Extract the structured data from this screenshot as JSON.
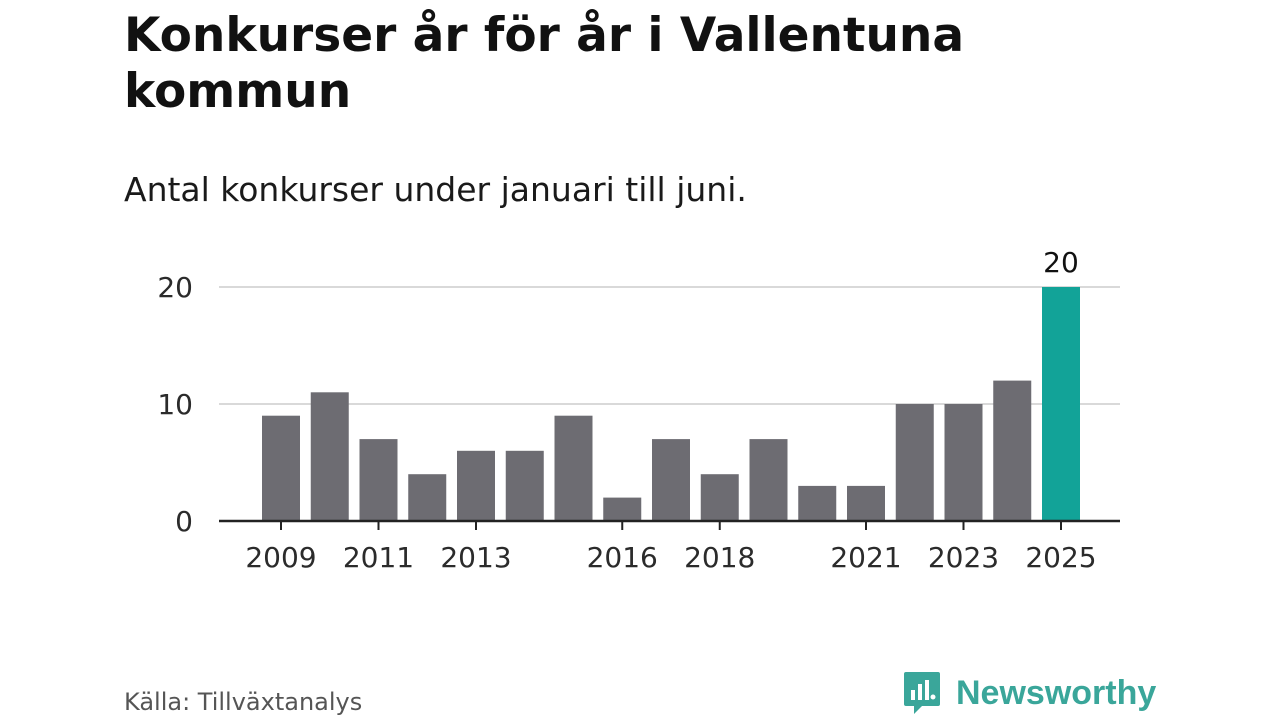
{
  "title": "Konkurser år för år i Vallentuna kommun",
  "subtitle": "Antal konkurser under januari till juni.",
  "source": "Källa: Tillväxtanalys",
  "brand": {
    "name": "Newsworthy",
    "icon": "newsworthy-logo-icon",
    "color": "#3aa69a"
  },
  "chart_data": {
    "type": "bar",
    "categories": [
      "2009",
      "2010",
      "2011",
      "2012",
      "2013",
      "2014",
      "2015",
      "2016",
      "2017",
      "2018",
      "2019",
      "2020",
      "2021",
      "2022",
      "2023",
      "2024",
      "2025"
    ],
    "values": [
      9,
      11,
      7,
      4,
      6,
      6,
      9,
      2,
      7,
      4,
      7,
      3,
      3,
      10,
      10,
      12,
      20
    ],
    "x_tick_labels": [
      "2009",
      "2011",
      "2013",
      "2016",
      "2018",
      "2021",
      "2023",
      "2025"
    ],
    "y_ticks": [
      0,
      10,
      20
    ],
    "ylim": [
      0,
      20
    ],
    "grid": true,
    "highlight": {
      "category": "2025",
      "label": "20",
      "color": "#12a398"
    },
    "bar_color": "#6d6c72",
    "xlabel": "",
    "ylabel": ""
  }
}
